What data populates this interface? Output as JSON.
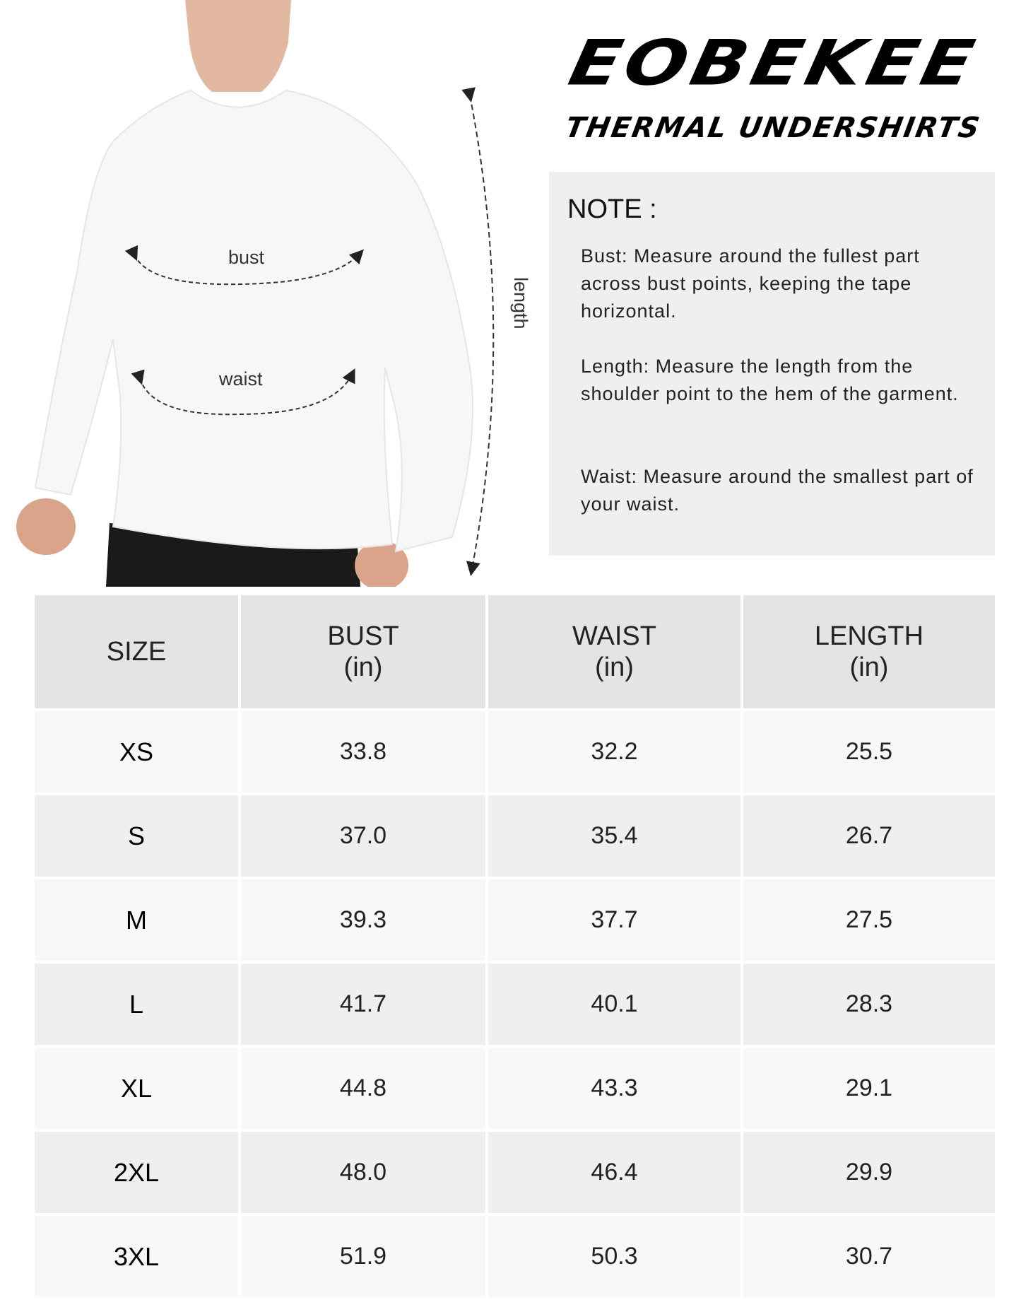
{
  "brand": {
    "logo": "EOBEKEE",
    "subtitle": "THERMAL UNDERSHIRTS"
  },
  "figure": {
    "bust_label": "bust",
    "waist_label": "waist",
    "length_label": "length"
  },
  "note": {
    "title": "NOTE :",
    "items": [
      "Bust: Measure around the fullest part across bust points, keeping the tape horizontal.",
      "Length: Measure the length from the shoulder point to the hem of the garment.",
      "Waist: Measure around the smallest part of your waist."
    ]
  },
  "size_table": {
    "headers": [
      {
        "label": "SIZE",
        "unit": ""
      },
      {
        "label": "BUST",
        "unit": "(in)"
      },
      {
        "label": "WAIST",
        "unit": "(in)"
      },
      {
        "label": "LENGTH",
        "unit": "(in)"
      }
    ],
    "rows": [
      [
        "XS",
        "33.8",
        "32.2",
        "25.5"
      ],
      [
        "S",
        "37.0",
        "35.4",
        "26.7"
      ],
      [
        "M",
        "39.3",
        "37.7",
        "27.5"
      ],
      [
        "L",
        "41.7",
        "40.1",
        "28.3"
      ],
      [
        "XL",
        "44.8",
        "43.3",
        "29.1"
      ],
      [
        "2XL",
        "48.0",
        "46.4",
        "29.9"
      ],
      [
        "3XL",
        "51.9",
        "50.3",
        "30.7"
      ]
    ]
  }
}
